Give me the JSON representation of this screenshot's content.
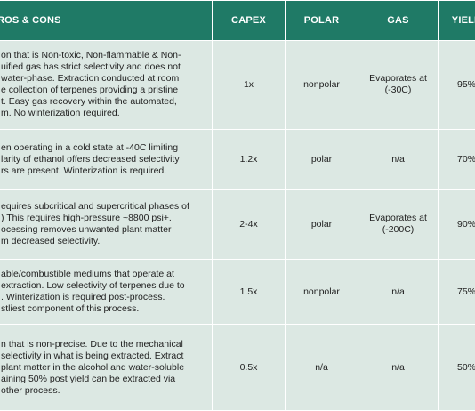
{
  "header": {
    "pros_cons": "ROS & CONS",
    "capex": "CAPEX",
    "polar": "POLAR",
    "gas": "GAS",
    "yield": "YIELD"
  },
  "rows": [
    {
      "pros_lines": [
        "on that is Non-toxic, Non-flammable & Non-",
        "uified gas has strict selectivity and does not",
        "water-phase. Extraction conducted at room",
        "e collection of terpenes providing a pristine",
        "t. Easy gas recovery within the automated,",
        "m. No winterization required."
      ],
      "capex": "1x",
      "polar": "nonpolar",
      "gas_lines": [
        "Evaporates at",
        "(-30C)"
      ],
      "yield": "95%"
    },
    {
      "pros_lines": [
        "en operating in a cold state at -40C limiting",
        "larity of ethanol offers decreased selectivity",
        "rs are present. Winterization is required."
      ],
      "capex": "1.2x",
      "polar": "polar",
      "gas_lines": [
        "n/a"
      ],
      "yield": "70%"
    },
    {
      "pros_lines": [
        "equires subcritical and supercritical phases of",
        ") This requires high-pressure ~8800 psi+.",
        "ocessing removes unwanted plant matter",
        "m decreased selectivity."
      ],
      "capex": "2-4x",
      "polar": "polar",
      "gas_lines": [
        "Evaporates at",
        "(-200C)"
      ],
      "yield": "90%"
    },
    {
      "pros_lines": [
        "able/combustible mediums that operate at",
        "extraction. Low selectivity of terpenes due to",
        ". Winterization is required post-process.",
        "stliest component of this process."
      ],
      "capex": "1.5x",
      "polar": "nonpolar",
      "gas_lines": [
        "n/a"
      ],
      "yield": "75%"
    },
    {
      "pros_lines": [
        "n that is non-precise. Due to the mechanical",
        "selectivity in what is being extracted. Extract",
        "plant matter in the alcohol and water-soluble",
        "aining 50% post yield can be extracted via",
        "other process."
      ],
      "capex": "0.5x",
      "polar": "n/a",
      "gas_lines": [
        "n/a"
      ],
      "yield": "50%"
    }
  ]
}
